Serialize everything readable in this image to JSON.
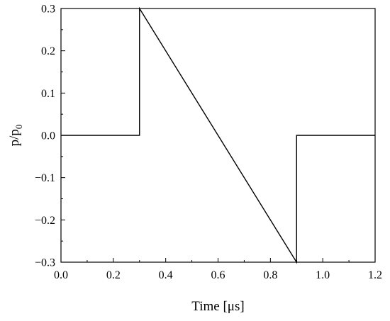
{
  "chart_data": {
    "type": "line",
    "xlabel": "Time [μs]",
    "ylabel": {
      "base": "p/p",
      "subscript": "0"
    },
    "xlim": [
      0.0,
      1.2
    ],
    "ylim": [
      -0.3,
      0.3
    ],
    "xticks": [
      0.0,
      0.2,
      0.4,
      0.6,
      0.8,
      1.0,
      1.2
    ],
    "xtick_labels": [
      "0.0",
      "0.2",
      "0.4",
      "0.6",
      "0.8",
      "1.0",
      "1.2"
    ],
    "yticks": [
      -0.3,
      -0.2,
      -0.1,
      0.0,
      0.1,
      0.2,
      0.3
    ],
    "ytick_labels": [
      "−0.3",
      "−0.2",
      "−0.1",
      "0.0",
      "0.1",
      "0.2",
      "0.3"
    ],
    "grid": false,
    "series": [
      {
        "x": [
          0.0,
          0.3,
          0.3,
          0.9,
          0.9,
          1.2
        ],
        "y": [
          0.0,
          0.0,
          0.3,
          -0.3,
          0.0,
          0.0
        ],
        "color": "#000000"
      }
    ]
  }
}
